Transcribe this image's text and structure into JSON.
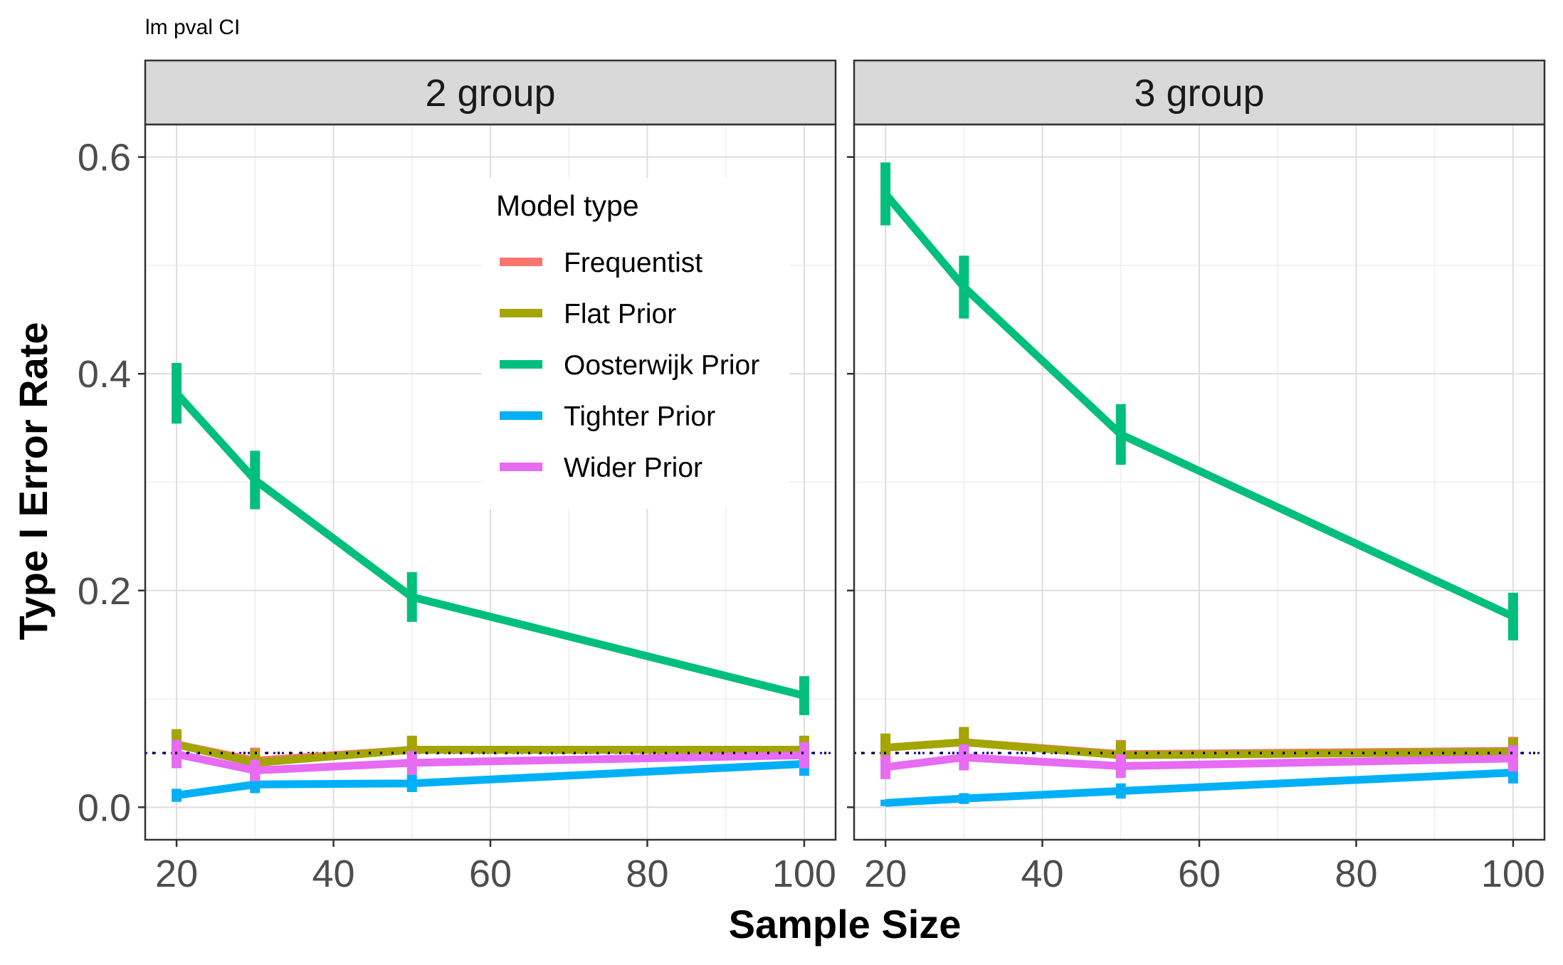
{
  "chart_data": {
    "type": "line",
    "title": "lm pval CI",
    "xlabel": "Sample Size",
    "ylabel": "Type I Error Rate",
    "xlim": [
      16,
      104
    ],
    "ylim": [
      -0.03,
      0.63
    ],
    "x_ticks": [
      20,
      40,
      60,
      80,
      100
    ],
    "x_tick_labels": [
      "20",
      "40",
      "60",
      "80",
      "100"
    ],
    "x_minor_ticks": [
      30,
      50,
      70,
      90
    ],
    "y_ticks": [
      0.0,
      0.2,
      0.4,
      0.6
    ],
    "y_tick_labels": [
      "0.0",
      "0.2",
      "0.4",
      "0.6"
    ],
    "y_minor_ticks": [
      0.1,
      0.3,
      0.5
    ],
    "grid": true,
    "reference_line": {
      "y": 0.05,
      "style": "dotted"
    },
    "legend": {
      "title": "Model type",
      "placement": "inside-top-left-panel"
    },
    "series_styles": [
      {
        "name": "Frequentist",
        "color": "#F8766D"
      },
      {
        "name": "Flat Prior",
        "color": "#A3A500"
      },
      {
        "name": "Oosterwijk Prior",
        "color": "#00BF7D"
      },
      {
        "name": "Tighter Prior",
        "color": "#00B0F6"
      },
      {
        "name": "Wider Prior",
        "color": "#E76BF3"
      }
    ],
    "panels": [
      {
        "label": "2 group",
        "x": [
          20,
          30,
          50,
          100
        ],
        "series": [
          {
            "name": "Frequentist",
            "values": [
              0.058,
              0.043,
              0.053,
              0.053
            ],
            "err": [
              0.014,
              0.012,
              0.013,
              0.013
            ]
          },
          {
            "name": "Flat Prior",
            "values": [
              0.058,
              0.041,
              0.053,
              0.053
            ],
            "err": [
              0.014,
              0.012,
              0.013,
              0.013
            ]
          },
          {
            "name": "Oosterwijk Prior",
            "values": [
              0.382,
              0.302,
              0.194,
              0.103
            ],
            "err": [
              0.028,
              0.027,
              0.023,
              0.018
            ]
          },
          {
            "name": "Tighter Prior",
            "values": [
              0.011,
              0.021,
              0.022,
              0.04
            ],
            "err": [
              0.006,
              0.008,
              0.008,
              0.011
            ]
          },
          {
            "name": "Wider Prior",
            "values": [
              0.049,
              0.034,
              0.041,
              0.048
            ],
            "err": [
              0.013,
              0.01,
              0.011,
              0.012
            ]
          }
        ]
      },
      {
        "label": "3 group",
        "x": [
          20,
          30,
          50,
          100
        ],
        "series": [
          {
            "name": "Frequentist",
            "values": [
              0.055,
              0.06,
              0.049,
              0.052
            ],
            "err": [
              0.013,
              0.014,
              0.013,
              0.013
            ]
          },
          {
            "name": "Flat Prior",
            "values": [
              0.055,
              0.06,
              0.048,
              0.051
            ],
            "err": [
              0.013,
              0.014,
              0.013,
              0.013
            ]
          },
          {
            "name": "Oosterwijk Prior",
            "values": [
              0.566,
              0.48,
              0.344,
              0.176
            ],
            "err": [
              0.029,
              0.029,
              0.028,
              0.022
            ]
          },
          {
            "name": "Tighter Prior",
            "values": [
              0.004,
              0.008,
              0.015,
              0.032
            ],
            "err": [
              0.003,
              0.005,
              0.007,
              0.01
            ]
          },
          {
            "name": "Wider Prior",
            "values": [
              0.037,
              0.046,
              0.038,
              0.045
            ],
            "err": [
              0.011,
              0.012,
              0.011,
              0.012
            ]
          }
        ]
      }
    ]
  }
}
